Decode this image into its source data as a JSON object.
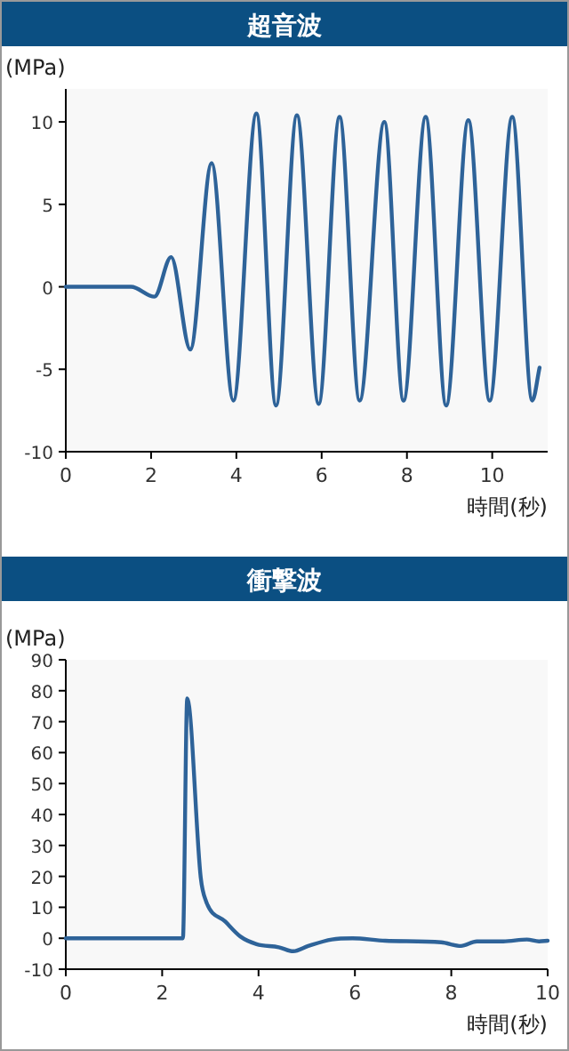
{
  "chart_data": [
    {
      "type": "line",
      "title": "超音波",
      "ylabel": "(MPa)",
      "xlabel": "時間(秒)",
      "xlim": [
        0,
        11.3
      ],
      "xticks": [
        0,
        2,
        4,
        6,
        8,
        10
      ],
      "ylim": [
        -10,
        12
      ],
      "yticks": [
        -10,
        -5,
        0,
        5,
        10
      ],
      "grid": false,
      "x": [
        0,
        1.53,
        2.08,
        2.47,
        2.92,
        3.42,
        3.93,
        4.47,
        4.93,
        5.42,
        5.93,
        6.42,
        6.89,
        7.47,
        7.92,
        8.44,
        8.92,
        9.44,
        9.94,
        10.47,
        10.94,
        11.11
      ],
      "series": [
        {
          "color": "#2e6399",
          "values": [
            0,
            0,
            -0.6,
            1.8,
            -3.8,
            7.5,
            -6.9,
            10.5,
            -7.2,
            10.4,
            -7.1,
            10.3,
            -6.9,
            10.0,
            -6.9,
            10.3,
            -7.2,
            10.1,
            -6.9,
            10.3,
            -6.9,
            -4.9
          ]
        }
      ]
    },
    {
      "type": "line",
      "title": "衝撃波",
      "ylabel": "(MPa)",
      "xlabel": "時間(秒)",
      "xlim": [
        0,
        10
      ],
      "xticks": [
        0,
        2,
        4,
        6,
        8,
        10
      ],
      "ylim": [
        -10,
        90
      ],
      "yticks": [
        -10,
        0,
        10,
        20,
        30,
        40,
        50,
        60,
        70,
        80,
        90
      ],
      "grid": false,
      "x": [
        0,
        2.43,
        2.52,
        2.8,
        2.91,
        3.31,
        3.62,
        3.96,
        4.42,
        4.72,
        5.03,
        5.52,
        5.95,
        6.63,
        7.79,
        8.2,
        8.53,
        9.08,
        9.57,
        9.82,
        10
      ],
      "series": [
        {
          "color": "#2e6399",
          "values": [
            0,
            0,
            77.5,
            19.7,
            12,
            5.4,
            0.6,
            -1.9,
            -2.9,
            -4.2,
            -2.5,
            -0.4,
            0,
            -0.8,
            -1.3,
            -2.5,
            -1,
            -1,
            -0.4,
            -1,
            -0.8
          ]
        }
      ]
    }
  ]
}
